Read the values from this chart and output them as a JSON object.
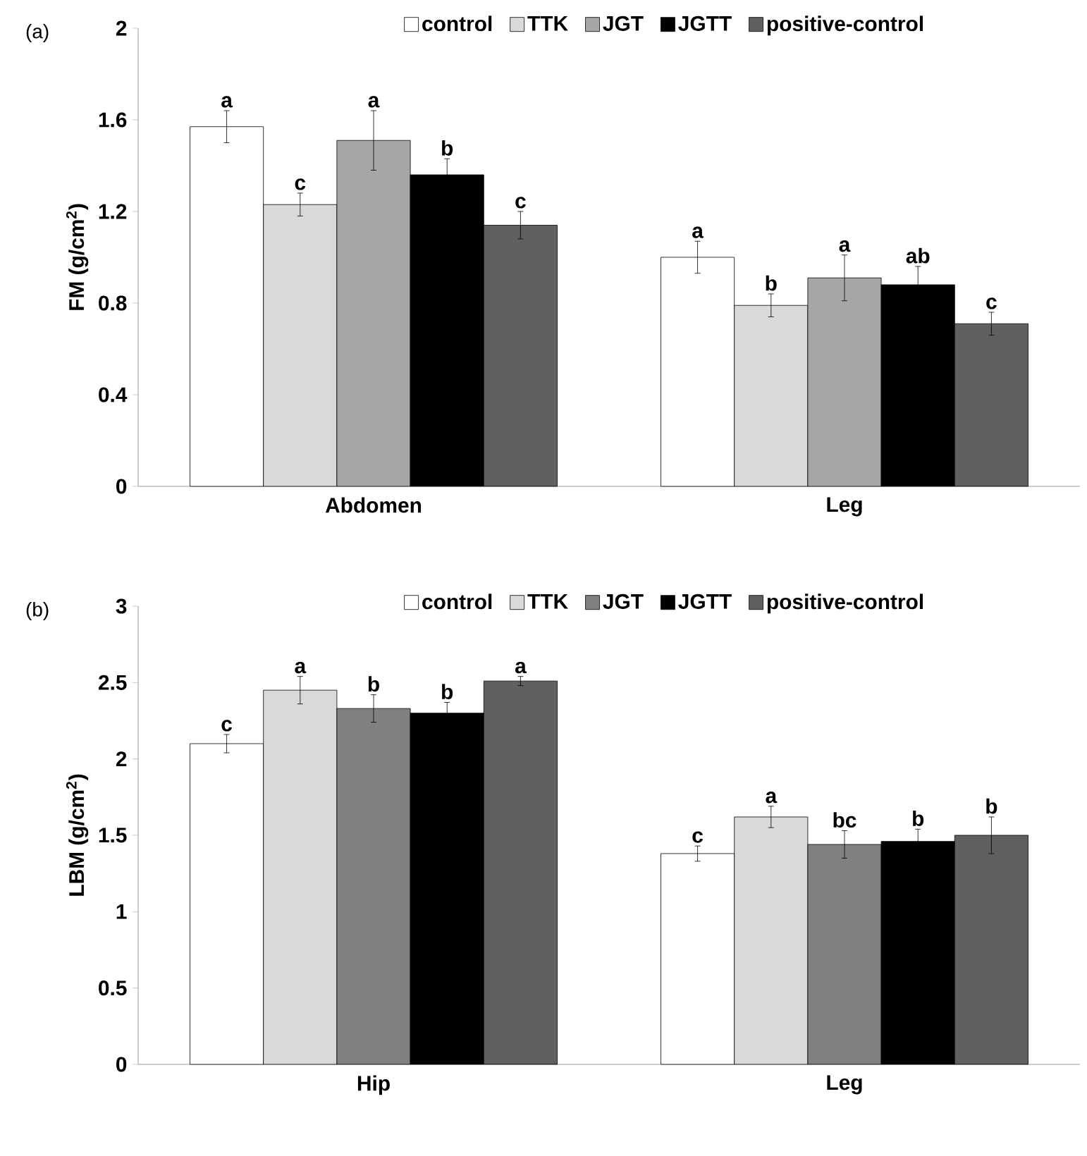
{
  "chart_data": [
    {
      "type": "bar",
      "ylabel": "FM (g/cm$^{2}$)",
      "categories": [
        "Abdomen",
        "Leg"
      ],
      "ylim": [
        0,
        2
      ],
      "yticks": [
        0,
        0.4,
        0.8,
        1.2,
        1.6,
        2
      ],
      "legend": "top",
      "annotations": [
        "(a)"
      ],
      "series": [
        {
          "name": "control",
          "color": "#ffffff",
          "values": [
            1.57,
            1.0
          ],
          "errors": [
            0.07,
            0.07
          ],
          "value_labels": [
            "a",
            "a"
          ]
        },
        {
          "name": "TTK",
          "color": "#d9d9d9",
          "values": [
            1.23,
            0.79
          ],
          "errors": [
            0.05,
            0.05
          ],
          "value_labels": [
            "c",
            "b"
          ]
        },
        {
          "name": "JGT",
          "color": "#a6a6a6",
          "values": [
            1.51,
            0.91
          ],
          "errors": [
            0.13,
            0.1
          ],
          "value_labels": [
            "a",
            "a"
          ]
        },
        {
          "name": "JGTT",
          "color": "#000000",
          "values": [
            1.36,
            0.88
          ],
          "errors": [
            0.07,
            0.08
          ],
          "value_labels": [
            "b",
            "ab"
          ]
        },
        {
          "name": "positive-control",
          "color": "#606060",
          "values": [
            1.14,
            0.71
          ],
          "errors": [
            0.06,
            0.05
          ],
          "value_labels": [
            "c",
            "c"
          ]
        }
      ]
    },
    {
      "type": "bar",
      "ylabel": "LBM (g/cm$^{2}$)",
      "categories": [
        "Hip",
        "Leg"
      ],
      "ylim": [
        0,
        3
      ],
      "yticks": [
        0,
        0.5,
        1,
        1.5,
        2,
        2.5,
        3
      ],
      "legend": "top",
      "annotations": [
        "(b)"
      ],
      "series": [
        {
          "name": "control",
          "color": "#ffffff",
          "values": [
            2.1,
            1.38
          ],
          "errors": [
            0.06,
            0.05
          ],
          "value_labels": [
            "c",
            "c"
          ]
        },
        {
          "name": "TTK",
          "color": "#d9d9d9",
          "values": [
            2.45,
            1.62
          ],
          "errors": [
            0.09,
            0.07
          ],
          "value_labels": [
            "a",
            "a"
          ]
        },
        {
          "name": "JGT",
          "color": "#808080",
          "values": [
            2.33,
            1.44
          ],
          "errors": [
            0.09,
            0.09
          ],
          "value_labels": [
            "b",
            "bc"
          ]
        },
        {
          "name": "JGTT",
          "color": "#000000",
          "values": [
            2.3,
            1.46
          ],
          "errors": [
            0.07,
            0.08
          ],
          "value_labels": [
            "b",
            "b"
          ]
        },
        {
          "name": "positive-control",
          "color": "#606060",
          "values": [
            2.51,
            1.5
          ],
          "errors": [
            0.03,
            0.12
          ],
          "value_labels": [
            "a",
            "b"
          ]
        }
      ]
    }
  ]
}
